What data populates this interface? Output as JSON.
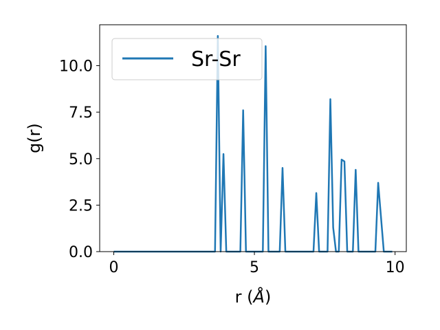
{
  "chart_data": {
    "type": "line",
    "xlabel": "r (",
    "xlabel_unit": "Å",
    "xlabel_close": ")",
    "ylabel": "g(r)",
    "xlim": [
      -0.5,
      10.4
    ],
    "ylim": [
      0,
      12.2
    ],
    "xticks": [
      0,
      5,
      10
    ],
    "xtick_labels": [
      "0",
      "5",
      "10"
    ],
    "yticks": [
      0,
      2.5,
      5,
      7.5,
      10
    ],
    "ytick_labels": [
      "0.0",
      "2.5",
      "5.0",
      "7.5",
      "10.0"
    ],
    "grid": false,
    "legend_position": "top-left",
    "colors": {
      "series": "#1f77b4"
    },
    "series": [
      {
        "name": "Sr-Sr",
        "x": [
          0.0,
          3.6,
          3.7,
          3.8,
          3.9,
          4.0,
          4.5,
          4.6,
          4.7,
          5.3,
          5.4,
          5.5,
          5.9,
          6.0,
          6.1,
          7.1,
          7.2,
          7.3,
          7.6,
          7.7,
          7.8,
          7.9,
          8.0,
          8.1,
          8.2,
          8.3,
          8.5,
          8.6,
          8.7,
          9.3,
          9.4,
          9.6,
          9.7,
          9.9
        ],
        "y": [
          0,
          0,
          11.6,
          0,
          5.25,
          0,
          0,
          7.6,
          0,
          0,
          11.05,
          0,
          0,
          4.5,
          0,
          0,
          3.15,
          0,
          0,
          8.2,
          1.3,
          0,
          0,
          4.95,
          4.85,
          0,
          0,
          4.4,
          0,
          0,
          3.7,
          0,
          0,
          0
        ]
      }
    ]
  }
}
